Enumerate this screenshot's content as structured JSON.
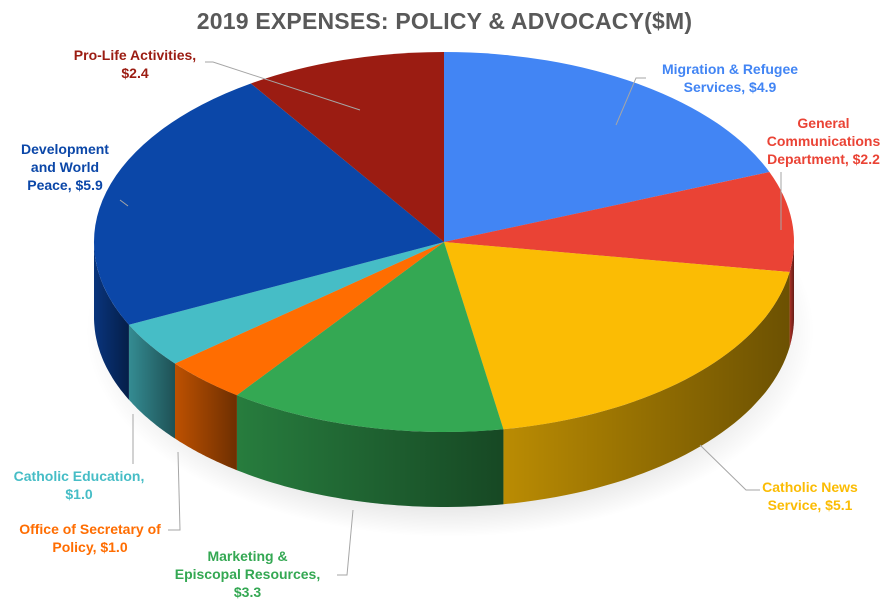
{
  "chart_data": {
    "type": "pie",
    "style": "3d-pie",
    "title": "2019 EXPENSES: POLICY & ADVOCACY($M)",
    "categories": [
      "Migration & Refugee Services",
      "General Communications Department",
      "Catholic News Service",
      "Marketing & Episcopal Resources",
      "Office of Secretary of Policy",
      "Catholic Education",
      "Development and World Peace",
      "Pro-Life Activities"
    ],
    "values": [
      4.9,
      2.2,
      5.1,
      3.3,
      1.0,
      1.0,
      5.9,
      2.4
    ],
    "units": "$M",
    "colors": [
      "#4285f4",
      "#ea4335",
      "#fbbc04",
      "#34a853",
      "#ff6d01",
      "#46bdc6",
      "#0b47a8",
      "#9b1c12"
    ],
    "data_labels": [
      "Migration & Refugee\nServices,  $4.9",
      "General\nCommunications\nDepartment,  $2.2",
      "Catholic News\nService,  $5.1",
      "Marketing &\nEpiscopal Resources,\n$3.3",
      "Office of Secretary of\nPolicy,  $1.0",
      "Catholic Education,\n$1.0",
      "Development\nand World\nPeace,  $5.9",
      "Pro-Life Activities,\n$2.4"
    ],
    "legend": "none"
  }
}
